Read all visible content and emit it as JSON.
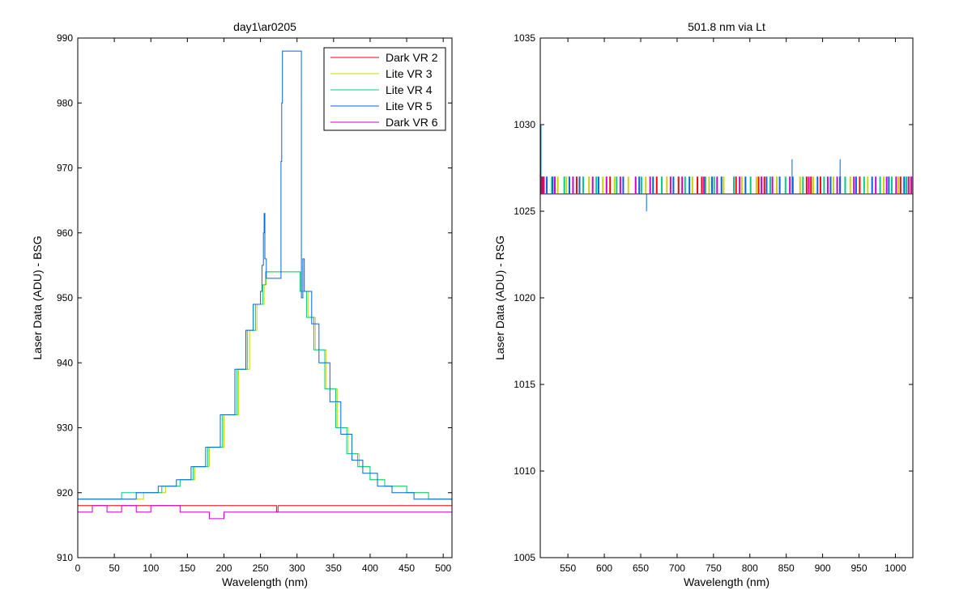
{
  "chart_data": [
    {
      "type": "line",
      "title": "day1\\ar0205",
      "xlabel": "Wavelength (nm)",
      "ylabel": "Laser Data (ADU) - BSG",
      "xlim": [
        0,
        512
      ],
      "ylim": [
        910,
        990
      ],
      "xticks": [
        0,
        50,
        100,
        150,
        200,
        250,
        300,
        350,
        400,
        450,
        500
      ],
      "yticks": [
        910,
        920,
        930,
        940,
        950,
        960,
        970,
        980,
        990
      ],
      "legend_position": "top-right",
      "series": [
        {
          "name": "Dark VR 2",
          "color": "#ff0000",
          "points": [
            [
              0,
              918
            ],
            [
              270,
              918
            ],
            [
              272,
              917
            ],
            [
              274,
              918
            ],
            [
              512,
              918
            ]
          ]
        },
        {
          "name": "Lite VR 3",
          "color": "#c8d400",
          "points": [
            [
              0,
              919
            ],
            [
              40,
              919
            ],
            [
              70,
              919
            ],
            [
              90,
              920
            ],
            [
              120,
              921
            ],
            [
              140,
              922
            ],
            [
              160,
              924
            ],
            [
              180,
              927
            ],
            [
              200,
              932
            ],
            [
              220,
              939
            ],
            [
              235,
              945
            ],
            [
              245,
              949
            ],
            [
              255,
              952
            ],
            [
              258,
              954
            ],
            [
              305,
              951
            ],
            [
              315,
              947
            ],
            [
              325,
              942
            ],
            [
              340,
              936
            ],
            [
              355,
              930
            ],
            [
              370,
              926
            ],
            [
              385,
              924
            ],
            [
              400,
              922
            ],
            [
              420,
              921
            ],
            [
              450,
              920
            ],
            [
              480,
              919
            ],
            [
              512,
              919
            ]
          ]
        },
        {
          "name": "Lite VR 4",
          "color": "#00cc88",
          "points": [
            [
              0,
              919
            ],
            [
              50,
              919
            ],
            [
              60,
              920
            ],
            [
              90,
              920
            ],
            [
              115,
              921
            ],
            [
              140,
              922
            ],
            [
              158,
              924
            ],
            [
              178,
              927
            ],
            [
              198,
              932
            ],
            [
              218,
              939
            ],
            [
              232,
              945
            ],
            [
              243,
              949
            ],
            [
              253,
              952
            ],
            [
              257,
              954
            ],
            [
              304,
              951
            ],
            [
              313,
              947
            ],
            [
              323,
              942
            ],
            [
              338,
              936
            ],
            [
              353,
              930
            ],
            [
              368,
              926
            ],
            [
              383,
              924
            ],
            [
              400,
              922
            ],
            [
              420,
              921
            ],
            [
              450,
              920
            ],
            [
              480,
              919
            ],
            [
              512,
              919
            ]
          ]
        },
        {
          "name": "Lite VR 5",
          "color": "#0066dd",
          "points": [
            [
              0,
              919
            ],
            [
              30,
              919
            ],
            [
              80,
              920
            ],
            [
              110,
              921
            ],
            [
              135,
              922
            ],
            [
              155,
              924
            ],
            [
              175,
              927
            ],
            [
              195,
              932
            ],
            [
              215,
              939
            ],
            [
              230,
              945
            ],
            [
              240,
              949
            ],
            [
              250,
              951
            ],
            [
              252,
              955
            ],
            [
              254,
              960
            ],
            [
              255,
              963
            ],
            [
              256,
              956
            ],
            [
              258,
              953
            ],
            [
              278,
              971
            ],
            [
              279,
              980
            ],
            [
              280,
              988
            ],
            [
              306,
              950
            ],
            [
              308,
              956
            ],
            [
              310,
              951
            ],
            [
              320,
              946
            ],
            [
              330,
              940
            ],
            [
              345,
              934
            ],
            [
              360,
              929
            ],
            [
              375,
              925
            ],
            [
              390,
              923
            ],
            [
              410,
              921
            ],
            [
              430,
              920
            ],
            [
              460,
              919
            ],
            [
              512,
              919
            ]
          ]
        },
        {
          "name": "Dark VR 6",
          "color": "#cc00cc",
          "points": [
            [
              0,
              917
            ],
            [
              10,
              917
            ],
            [
              20,
              918
            ],
            [
              40,
              917
            ],
            [
              60,
              918
            ],
            [
              80,
              917
            ],
            [
              100,
              918
            ],
            [
              140,
              917
            ],
            [
              180,
              916
            ],
            [
              200,
              917
            ],
            [
              240,
              917
            ],
            [
              300,
              917
            ],
            [
              400,
              917
            ],
            [
              512,
              917
            ]
          ]
        }
      ]
    },
    {
      "type": "line",
      "title": "501.8 nm via Lt",
      "xlabel": "Wavelength (nm)",
      "ylabel": "Laser Data (ADU) - RSG",
      "xlim": [
        512,
        1024
      ],
      "ylim": [
        1005,
        1035
      ],
      "xticks": [
        550,
        600,
        650,
        700,
        750,
        800,
        850,
        900,
        950,
        1000
      ],
      "yticks": [
        1005,
        1010,
        1015,
        1020,
        1025,
        1030,
        1035
      ],
      "series": [
        {
          "name": "Dark VR 2",
          "color": "#ff0000",
          "baseline": 1026,
          "spike_to": 1027,
          "spikes": [
            513,
            514,
            515,
            562,
            608,
            672,
            702,
            728,
            734,
            781,
            812,
            820,
            878,
            884,
            897,
            924,
            951,
            1007
          ]
        },
        {
          "name": "Lite VR 3",
          "color": "#c8d400",
          "baseline": 1026,
          "spike_to": 1027,
          "spikes": [
            536,
            548,
            579,
            598,
            614,
            633,
            657,
            686,
            721,
            744,
            764,
            789,
            809,
            837,
            869,
            887,
            915,
            938,
            962,
            984,
            1004,
            1020
          ]
        },
        {
          "name": "Lite VR 4",
          "color": "#00cc88",
          "baseline": 1026,
          "spike_to": 1027,
          "spikes": [
            528,
            545,
            571,
            589,
            617,
            651,
            679,
            711,
            739,
            751,
            778,
            801,
            828,
            849,
            873,
            902,
            931,
            957,
            979,
            995,
            1015
          ]
        },
        {
          "name": "Lite VR 5",
          "color": "#0066dd",
          "baseline": 1026,
          "spike_to": 1027,
          "spikes": [
            521,
            529,
            552,
            566,
            592,
            626,
            648,
            667,
            695,
            717,
            748,
            761,
            794,
            823,
            841,
            859,
            893,
            911,
            924,
            946,
            968,
            991,
            1012
          ],
          "extremes": [
            [
              658,
              1025
            ],
            [
              858,
              1028
            ],
            [
              924,
              1028
            ],
            [
              513,
              1030
            ]
          ]
        },
        {
          "name": "Dark VR 6",
          "color": "#cc00cc",
          "baseline": 1026,
          "spike_to": 1027,
          "spikes": [
            517,
            532,
            557,
            584,
            603,
            622,
            643,
            663,
            691,
            707,
            737,
            755,
            786,
            816,
            831,
            855,
            881,
            907,
            920,
            943,
            973,
            988,
            1001,
            1018,
            1022
          ]
        }
      ]
    }
  ]
}
